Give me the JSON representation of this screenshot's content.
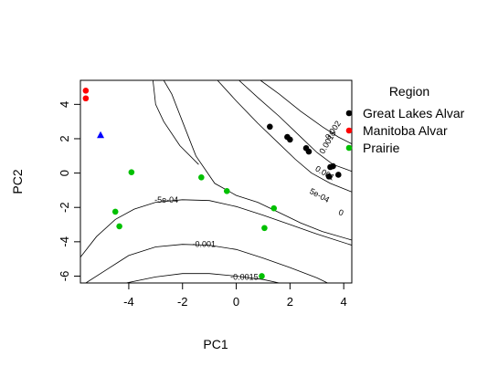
{
  "chart_data": {
    "type": "scatter",
    "xlabel": "PC1",
    "ylabel": "PC2",
    "xlim": [
      -5.8,
      4.3
    ],
    "ylim": [
      -6.4,
      5.4
    ],
    "xticks": [
      -4,
      -2,
      0,
      2,
      4
    ],
    "yticks": [
      -6,
      -4,
      -2,
      0,
      2,
      4
    ],
    "xtick_labels": [
      "-4",
      "-2",
      "0",
      "2",
      "4"
    ],
    "ytick_labels": [
      "-6",
      "-4",
      "-2",
      "0",
      "2",
      "4"
    ],
    "grid": false,
    "legend": {
      "title": "Region",
      "position": "right",
      "entries": [
        {
          "label": "Great Lakes Alvar",
          "color": "#000000"
        },
        {
          "label": "Manitoba Alvar",
          "color": "#ff0000"
        },
        {
          "label": "Prairie",
          "color": "#00c000"
        }
      ]
    },
    "series": [
      {
        "name": "Great Lakes Alvar",
        "color": "#000000",
        "marker": "circle",
        "points": [
          [
            1.25,
            2.7
          ],
          [
            1.9,
            2.1
          ],
          [
            2.0,
            1.95
          ],
          [
            2.6,
            1.45
          ],
          [
            2.7,
            1.25
          ],
          [
            3.6,
            0.4
          ],
          [
            3.5,
            0.35
          ],
          [
            3.8,
            -0.1
          ],
          [
            3.45,
            -0.2
          ]
        ]
      },
      {
        "name": "Manitoba Alvar",
        "color": "#ff0000",
        "marker": "circle",
        "points": [
          [
            -5.6,
            4.8
          ],
          [
            -5.6,
            4.35
          ]
        ]
      },
      {
        "name": "Prairie",
        "color": "#00c000",
        "marker": "circle",
        "points": [
          [
            -3.9,
            0.05
          ],
          [
            -1.3,
            -0.25
          ],
          [
            -0.35,
            -1.05
          ],
          [
            1.4,
            -2.05
          ],
          [
            1.05,
            -3.2
          ],
          [
            -4.5,
            -2.25
          ],
          [
            -4.35,
            -3.1
          ],
          [
            0.95,
            -6.0
          ]
        ]
      },
      {
        "color": "#0000ff",
        "marker": "triangle",
        "points": [
          [
            -5.05,
            2.2
          ]
        ]
      }
    ],
    "contours": [
      {
        "label": "0.002",
        "points": [
          [
            0.9,
            5.4
          ],
          [
            1.6,
            4.6
          ],
          [
            2.4,
            3.6
          ],
          [
            3.2,
            2.7
          ],
          [
            3.8,
            2.1
          ],
          [
            4.3,
            1.7
          ]
        ]
      },
      {
        "label": "0.0015",
        "points": [
          [
            0.1,
            5.4
          ],
          [
            0.8,
            4.4
          ],
          [
            1.6,
            3.3
          ],
          [
            2.4,
            2.1
          ],
          [
            3.0,
            1.2
          ],
          [
            3.6,
            0.5
          ],
          [
            4.3,
            0.1
          ]
        ]
      },
      {
        "label": "0.001",
        "points": [
          [
            -0.7,
            5.4
          ],
          [
            0.0,
            4.2
          ],
          [
            0.8,
            2.9
          ],
          [
            1.6,
            1.7
          ],
          [
            2.2,
            0.8
          ],
          [
            2.8,
            0.0
          ],
          [
            3.5,
            -0.6
          ],
          [
            4.3,
            -1.1
          ]
        ]
      },
      {
        "label": "5e-04",
        "points": [
          [
            -2.7,
            5.4
          ],
          [
            -2.4,
            4.6
          ],
          [
            -2.0,
            3.0
          ],
          [
            -1.5,
            1.0
          ],
          [
            -0.8,
            -0.6
          ],
          [
            0.0,
            -1.3
          ],
          [
            0.8,
            -1.7
          ],
          [
            1.6,
            -2.3
          ],
          [
            2.4,
            -2.9
          ],
          [
            3.2,
            -3.4
          ],
          [
            4.3,
            -3.9
          ]
        ]
      },
      {
        "label": "0",
        "points": [
          [
            -3.1,
            5.4
          ],
          [
            -3.0,
            4.0
          ],
          [
            -2.7,
            3.0
          ],
          [
            -2.1,
            1.6
          ],
          [
            -1.4,
            0.5
          ]
        ]
      },
      {
        "label": "-5e-04",
        "points": [
          [
            -5.8,
            -4.9
          ],
          [
            -5.2,
            -3.7
          ],
          [
            -4.5,
            -2.7
          ],
          [
            -3.8,
            -2.1
          ],
          [
            -3.0,
            -1.7
          ],
          [
            -2.0,
            -1.55
          ],
          [
            -1.0,
            -1.6
          ],
          [
            0.0,
            -1.95
          ],
          [
            1.0,
            -2.45
          ],
          [
            2.0,
            -3.0
          ],
          [
            3.0,
            -3.55
          ],
          [
            4.3,
            -4.2
          ]
        ]
      },
      {
        "label": "-0.001",
        "points": [
          [
            -5.6,
            -6.4
          ],
          [
            -4.8,
            -5.6
          ],
          [
            -4.0,
            -4.8
          ],
          [
            -3.0,
            -4.3
          ],
          [
            -2.0,
            -4.15
          ],
          [
            -1.0,
            -4.2
          ],
          [
            0.0,
            -4.45
          ],
          [
            1.0,
            -4.95
          ],
          [
            2.0,
            -5.5
          ],
          [
            3.0,
            -6.1
          ],
          [
            3.4,
            -6.4
          ]
        ]
      },
      {
        "label": "-0.0015",
        "points": [
          [
            -4.1,
            -6.4
          ],
          [
            -3.0,
            -6.05
          ],
          [
            -2.0,
            -5.85
          ],
          [
            -1.0,
            -5.85
          ],
          [
            0.0,
            -6.0
          ],
          [
            1.0,
            -6.2
          ],
          [
            1.6,
            -6.4
          ]
        ]
      }
    ],
    "contour_labels": [
      {
        "text": "0.002",
        "x": 3.6,
        "y": 2.5,
        "angle": 55
      },
      {
        "text": "0.0015",
        "x": 3.4,
        "y": 1.8,
        "angle": 60
      },
      {
        "text": "0.001",
        "x": 3.3,
        "y": 0.0,
        "angle": -30
      },
      {
        "text": "5e-04",
        "x": 3.1,
        "y": -1.3,
        "angle": -28
      },
      {
        "text": "0",
        "x": 3.9,
        "y": -2.3,
        "angle": -20
      },
      {
        "text": "-5e-04",
        "x": -2.6,
        "y": -1.55,
        "angle": 0
      },
      {
        "text": "-0.001",
        "x": -1.2,
        "y": -4.15,
        "angle": 0
      },
      {
        "text": "-0.0015",
        "x": 0.3,
        "y": -6.05,
        "angle": 0
      }
    ]
  }
}
